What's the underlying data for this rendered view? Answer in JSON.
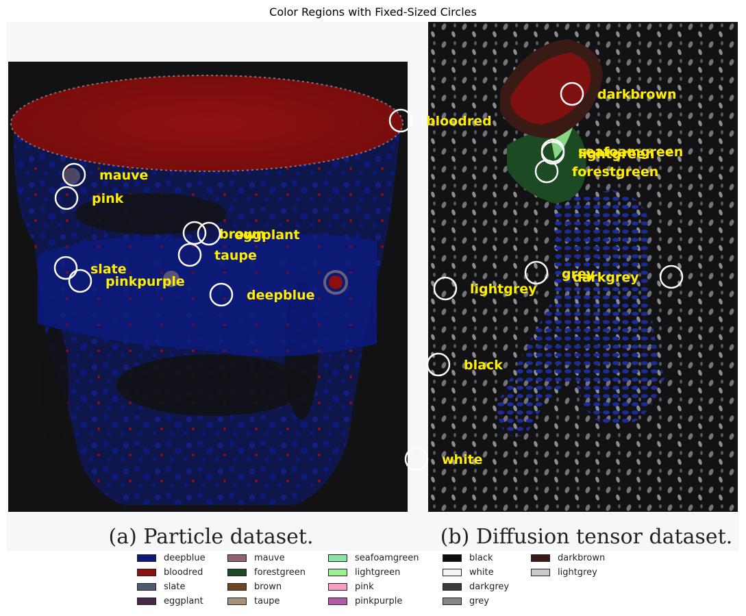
{
  "chart_data": {
    "type": "image_annotation",
    "title": "Color Regions with Fixed-Sized Circles",
    "panels": [
      {
        "caption": "(a) Particle dataset."
      },
      {
        "caption": "(b) Diffusion tensor dataset."
      }
    ],
    "annotations": [
      {
        "label": "bloodred",
        "panel": 0
      },
      {
        "label": "mauve",
        "panel": 0
      },
      {
        "label": "pink",
        "panel": 0
      },
      {
        "label": "brown",
        "panel": 0
      },
      {
        "label": "eggplant",
        "panel": 0
      },
      {
        "label": "taupe",
        "panel": 0
      },
      {
        "label": "slate",
        "panel": 0
      },
      {
        "label": "pinkpurple",
        "panel": 0
      },
      {
        "label": "deepblue",
        "panel": 0
      },
      {
        "label": "white",
        "panel": 0
      },
      {
        "label": "darkbrown",
        "panel": 1
      },
      {
        "label": "seafoamgreen",
        "panel": 1
      },
      {
        "label": "lightgreen",
        "panel": 1
      },
      {
        "label": "forestgreen",
        "panel": 1
      },
      {
        "label": "grey",
        "panel": 1
      },
      {
        "label": "darkgrey",
        "panel": 1
      },
      {
        "label": "lightgrey",
        "panel": 1
      },
      {
        "label": "black",
        "panel": 1
      }
    ],
    "legend": [
      {
        "name": "deepblue",
        "color": "#0c1a7a"
      },
      {
        "name": "bloodred",
        "color": "#8c1010"
      },
      {
        "name": "slate",
        "color": "#505a6e"
      },
      {
        "name": "eggplant",
        "color": "#452a45"
      },
      {
        "name": "mauve",
        "color": "#94616e"
      },
      {
        "name": "forestgreen",
        "color": "#1c4a22"
      },
      {
        "name": "brown",
        "color": "#6e4522"
      },
      {
        "name": "taupe",
        "color": "#a8917a"
      },
      {
        "name": "seafoamgreen",
        "color": "#8ae5a8"
      },
      {
        "name": "lightgreen",
        "color": "#9ef097"
      },
      {
        "name": "pink",
        "color": "#f59ec0"
      },
      {
        "name": "pinkpurple",
        "color": "#b55aa8"
      },
      {
        "name": "black",
        "color": "#0d0d0d"
      },
      {
        "name": "white",
        "color": "#f5f5f5"
      },
      {
        "name": "darkgrey",
        "color": "#3a3a3a"
      },
      {
        "name": "grey",
        "color": "#858585"
      },
      {
        "name": "darkbrown",
        "color": "#3a1a14"
      },
      {
        "name": "lightgrey",
        "color": "#c9cbc6"
      }
    ]
  },
  "colors": {
    "label_color": "#ffee00",
    "circle_color": "#ffffff"
  }
}
